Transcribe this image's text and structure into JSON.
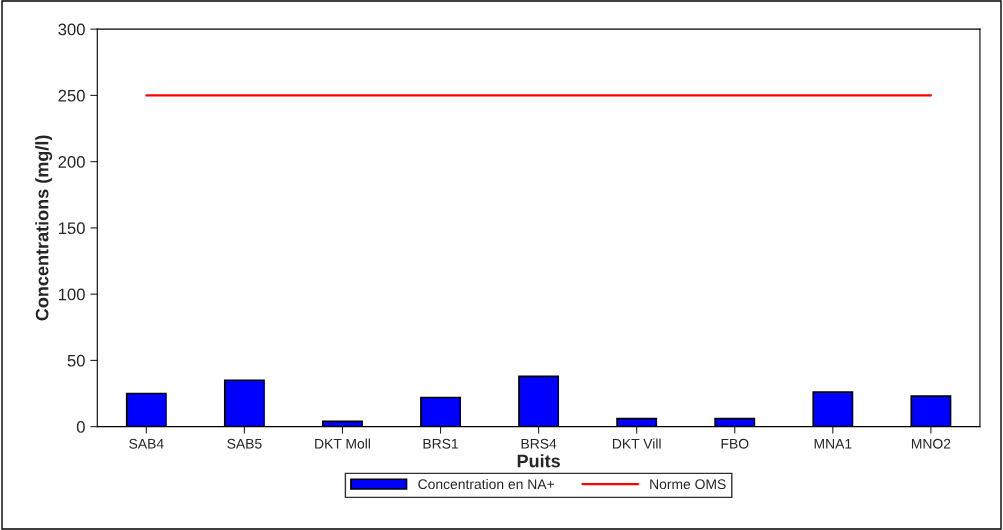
{
  "chart_data": {
    "type": "bar",
    "xlabel": "Puits",
    "ylabel": "Concentrations (mg/l)",
    "categories": [
      "SAB4",
      "SAB5",
      "DKT Moll",
      "BRS1",
      "BRS4",
      "DKT Vill",
      "FBO",
      "MNA1",
      "MNO2"
    ],
    "series": [
      {
        "name": "Concentration en NA+",
        "color": "#0000ff",
        "values": [
          25,
          35,
          4,
          22,
          38,
          6,
          6,
          26,
          23
        ]
      },
      {
        "name": "Norme OMS",
        "type": "line",
        "color": "#ff0000",
        "values": [
          250,
          250,
          250,
          250,
          250,
          250,
          250,
          250,
          250
        ]
      }
    ],
    "ylim": [
      0,
      300
    ],
    "yticks": [
      0,
      50,
      100,
      150,
      200,
      250,
      300
    ],
    "grid": false,
    "legend": "bottom"
  }
}
